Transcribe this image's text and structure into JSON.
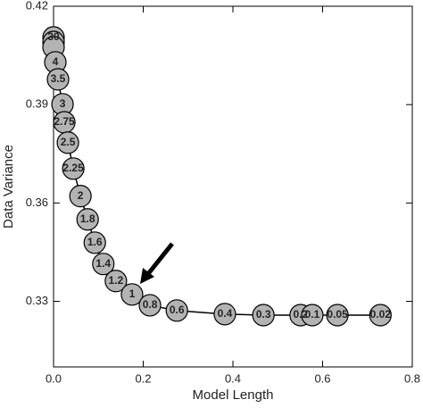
{
  "chart_data": {
    "type": "line",
    "x_label": "Model Length",
    "y_label": "Data Variance",
    "x": [
      0.0,
      0.0,
      0.0,
      0.004,
      0.01,
      0.02,
      0.024,
      0.032,
      0.044,
      0.06,
      0.076,
      0.092,
      0.111,
      0.139,
      0.175,
      0.215,
      0.275,
      0.382,
      0.468,
      0.551,
      0.577,
      0.633,
      0.729
    ],
    "values": [
      0.4105,
      0.4091,
      0.4075,
      0.4029,
      0.3977,
      0.3901,
      0.3846,
      0.3784,
      0.3705,
      0.3621,
      0.355,
      0.3479,
      0.3414,
      0.3362,
      0.3321,
      0.3288,
      0.3272,
      0.3261,
      0.3258,
      0.3258,
      0.3258,
      0.3258,
      0.3258
    ],
    "point_labels": [
      "30",
      null,
      null,
      "4",
      "3.5",
      "3",
      "2.75",
      "2.5",
      "2.25",
      "2",
      "1.8",
      "1.6",
      "1.4",
      "1.2",
      "1",
      "0.8",
      "0.6",
      "0.4",
      "0.3",
      "0.2",
      "0.1",
      "0.05",
      "0.02"
    ],
    "color": "#b3b3b3",
    "xlim": [
      0,
      0.8
    ],
    "xticks": [
      {
        "value": 0,
        "label": "0.0"
      },
      0.2,
      0.4,
      0.6,
      0.8
    ],
    "ylim": [
      0.31,
      0.42
    ],
    "yticks": [
      0.33,
      0.36,
      0.39,
      0.42
    ]
  }
}
